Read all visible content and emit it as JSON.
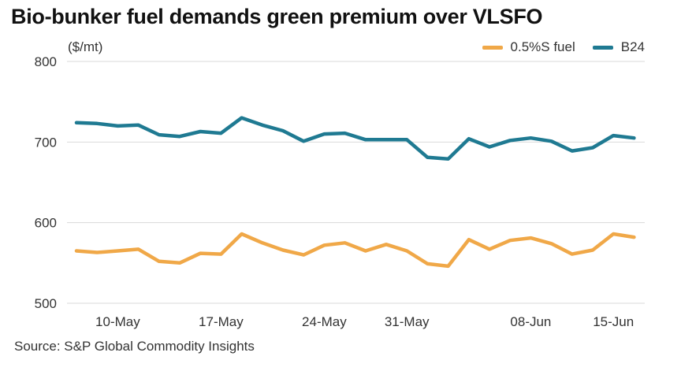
{
  "chart_data": {
    "type": "line",
    "title": "Bio-bunker fuel demands green premium over VLSFO",
    "ylabel": "($/mt)",
    "xlabel": "",
    "ylim": [
      500,
      800
    ],
    "yticks": [
      500,
      600,
      700,
      800
    ],
    "grid": true,
    "legend_position": "top-right",
    "x_ticks": [
      {
        "index": 2,
        "label": "10-May"
      },
      {
        "index": 7,
        "label": "17-May"
      },
      {
        "index": 12,
        "label": "24-May"
      },
      {
        "index": 16,
        "label": "31-May"
      },
      {
        "index": 22,
        "label": "08-Jun"
      },
      {
        "index": 26,
        "label": "15-Jun"
      }
    ],
    "series": [
      {
        "name": "0.5%S fuel",
        "color": "#f0a848",
        "values": [
          565,
          563,
          565,
          567,
          552,
          550,
          562,
          561,
          586,
          575,
          566,
          560,
          572,
          575,
          565,
          573,
          565,
          549,
          546,
          579,
          567,
          578,
          581,
          574,
          561,
          566,
          586,
          582
        ]
      },
      {
        "name": "B24",
        "color": "#1f7a92",
        "values": [
          724,
          723,
          720,
          721,
          709,
          707,
          713,
          711,
          730,
          721,
          714,
          701,
          710,
          711,
          703,
          703,
          703,
          681,
          679,
          704,
          694,
          702,
          705,
          701,
          689,
          693,
          708,
          705
        ]
      }
    ],
    "source": "Source: S&P Global Commodity Insights"
  }
}
